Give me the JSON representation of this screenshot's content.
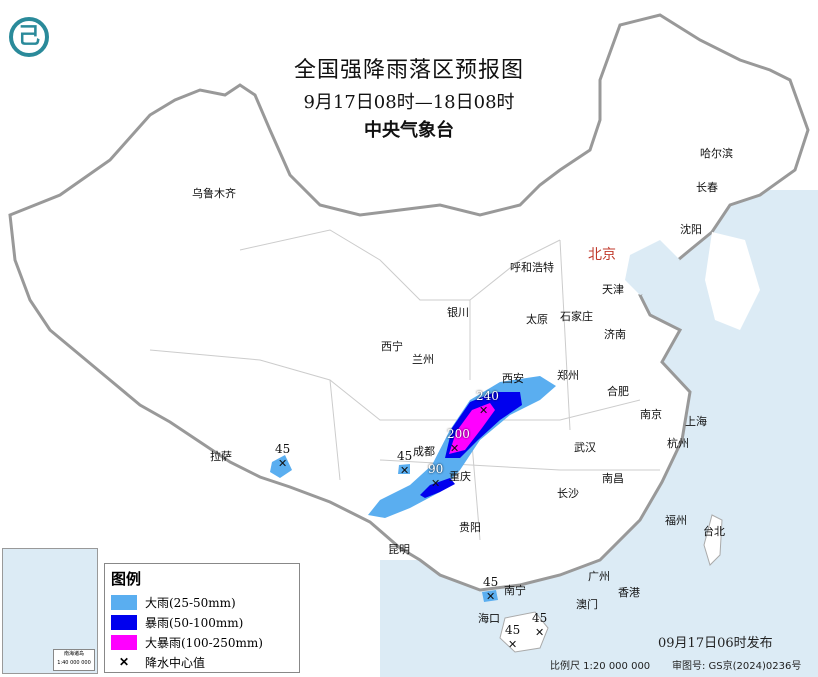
{
  "header": {
    "title": "全国强降雨落区预报图",
    "period": "9月17日08时—18日08时",
    "issuer": "中央气象台"
  },
  "logo": {
    "icon": "cma-logo-icon",
    "color": "#2a8a9a"
  },
  "legend": {
    "title": "图例",
    "items": [
      {
        "label": "大雨(25-50mm)",
        "color": "#5aaef0"
      },
      {
        "label": "暴雨(50-100mm)",
        "color": "#0000ee"
      },
      {
        "label": "大暴雨(100-250mm)",
        "color": "#ff00ff"
      },
      {
        "label": "降水中心值",
        "icon": "x-mark-icon"
      }
    ]
  },
  "cities": [
    "乌鲁木齐",
    "哈尔滨",
    "长春",
    "沈阳",
    "北京",
    "天津",
    "呼和浩特",
    "石家庄",
    "太原",
    "济南",
    "银川",
    "西宁",
    "兰州",
    "西安",
    "郑州",
    "合肥",
    "南京",
    "上海",
    "杭州",
    "拉萨",
    "成都",
    "重庆",
    "武汉",
    "南昌",
    "长沙",
    "福州",
    "台北",
    "贵阳",
    "昆明",
    "南宁",
    "广州",
    "澳门",
    "香港",
    "海口"
  ],
  "rain_centers": [
    "240",
    "200",
    "90",
    "45",
    "45",
    "45",
    "45",
    "45"
  ],
  "inset": {
    "scale": "1:40 000 000",
    "label": "南海诸岛"
  },
  "footer": {
    "published": "09月17日06时发布",
    "scale": "比例尺 1:20 000 000",
    "review": "审图号: GS京(2024)0236号"
  }
}
